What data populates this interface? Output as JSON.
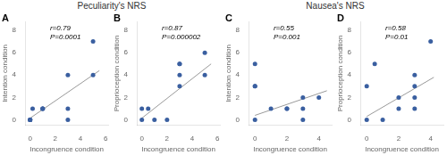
{
  "chart_data": [
    {
      "type": "scatter",
      "title": "Peculiarity's NRS",
      "annotations": [
        "A",
        "r=0.79",
        "P=0.0001"
      ],
      "xlabel": "Incongruence condition",
      "ylabel": "Intention condition",
      "xlim": [
        -0.4,
        6.2
      ],
      "ylim": [
        -0.5,
        8.8
      ],
      "xticks": [
        0,
        2,
        4,
        6
      ],
      "yticks": [
        0,
        2,
        4,
        6,
        8
      ],
      "grid": false,
      "series": [
        {
          "type": "scatter",
          "color": "#3a5fa0",
          "x": [
            0,
            0,
            0,
            0,
            0.2,
            1,
            1,
            1,
            3,
            3,
            3,
            5,
            5
          ],
          "values": [
            0,
            0,
            0,
            0,
            1,
            1,
            1,
            1,
            4,
            1,
            0,
            4,
            7
          ]
        },
        {
          "type": "line",
          "color": "#999999",
          "x": [
            0,
            5.5
          ],
          "values": [
            0.15,
            4.4
          ]
        }
      ]
    },
    {
      "type": "scatter",
      "annotations": [
        "B",
        "r=0.87",
        "P=0.000002"
      ],
      "xlabel": "Incongruence condition",
      "ylabel": "Proprioception condition",
      "xlim": [
        -0.4,
        6.2
      ],
      "ylim": [
        -0.5,
        8.8
      ],
      "xticks": [
        0,
        2,
        4,
        6
      ],
      "yticks": [
        0,
        2,
        4,
        6,
        8
      ],
      "grid": false,
      "series": [
        {
          "type": "scatter",
          "color": "#3a5fa0",
          "x": [
            0,
            0,
            0.5,
            1,
            2,
            3,
            3,
            3,
            3,
            5,
            5
          ],
          "values": [
            0,
            1,
            1,
            0,
            0,
            3,
            4,
            5,
            5,
            4,
            6
          ]
        },
        {
          "type": "line",
          "color": "#999999",
          "x": [
            0,
            5.5
          ],
          "values": [
            0.15,
            5.0
          ]
        }
      ]
    },
    {
      "type": "scatter",
      "title": "Nausea's NRS",
      "annotations": [
        "C",
        "r=0.55",
        "P=0.001"
      ],
      "xlabel": "Incongruence condition",
      "ylabel": "Intention condition",
      "xlim": [
        -0.4,
        4.8
      ],
      "ylim": [
        -0.5,
        8.8
      ],
      "xticks": [
        0,
        2,
        4
      ],
      "yticks": [
        0,
        2,
        4,
        6,
        8
      ],
      "grid": false,
      "series": [
        {
          "type": "scatter",
          "color": "#3a5fa0",
          "x": [
            0,
            0,
            0,
            0,
            1,
            2,
            2,
            3,
            3,
            3,
            4
          ],
          "values": [
            0,
            3,
            3,
            5,
            1,
            1,
            1,
            2,
            1,
            0,
            2
          ]
        },
        {
          "type": "line",
          "color": "#999999",
          "x": [
            0,
            4.5
          ],
          "values": [
            0.4,
            2.6
          ]
        }
      ]
    },
    {
      "type": "scatter",
      "annotations": [
        "D",
        "r=0.58",
        "P=0.01"
      ],
      "xlabel": "Incongruence condition",
      "ylabel": "Proprioception condition",
      "xlim": [
        -0.4,
        4.8
      ],
      "ylim": [
        -0.5,
        8.8
      ],
      "xticks": [
        0,
        2,
        4
      ],
      "yticks": [
        0,
        2,
        4,
        6,
        8
      ],
      "grid": false,
      "series": [
        {
          "type": "scatter",
          "color": "#3a5fa0",
          "x": [
            0,
            0,
            0.5,
            1,
            2,
            2,
            3,
            3,
            3,
            3,
            4
          ],
          "values": [
            0,
            3,
            5,
            0,
            2,
            1,
            3,
            4,
            2,
            1,
            7
          ]
        },
        {
          "type": "line",
          "color": "#999999",
          "x": [
            0,
            4.2
          ],
          "values": [
            0.3,
            3.8
          ]
        }
      ]
    }
  ]
}
